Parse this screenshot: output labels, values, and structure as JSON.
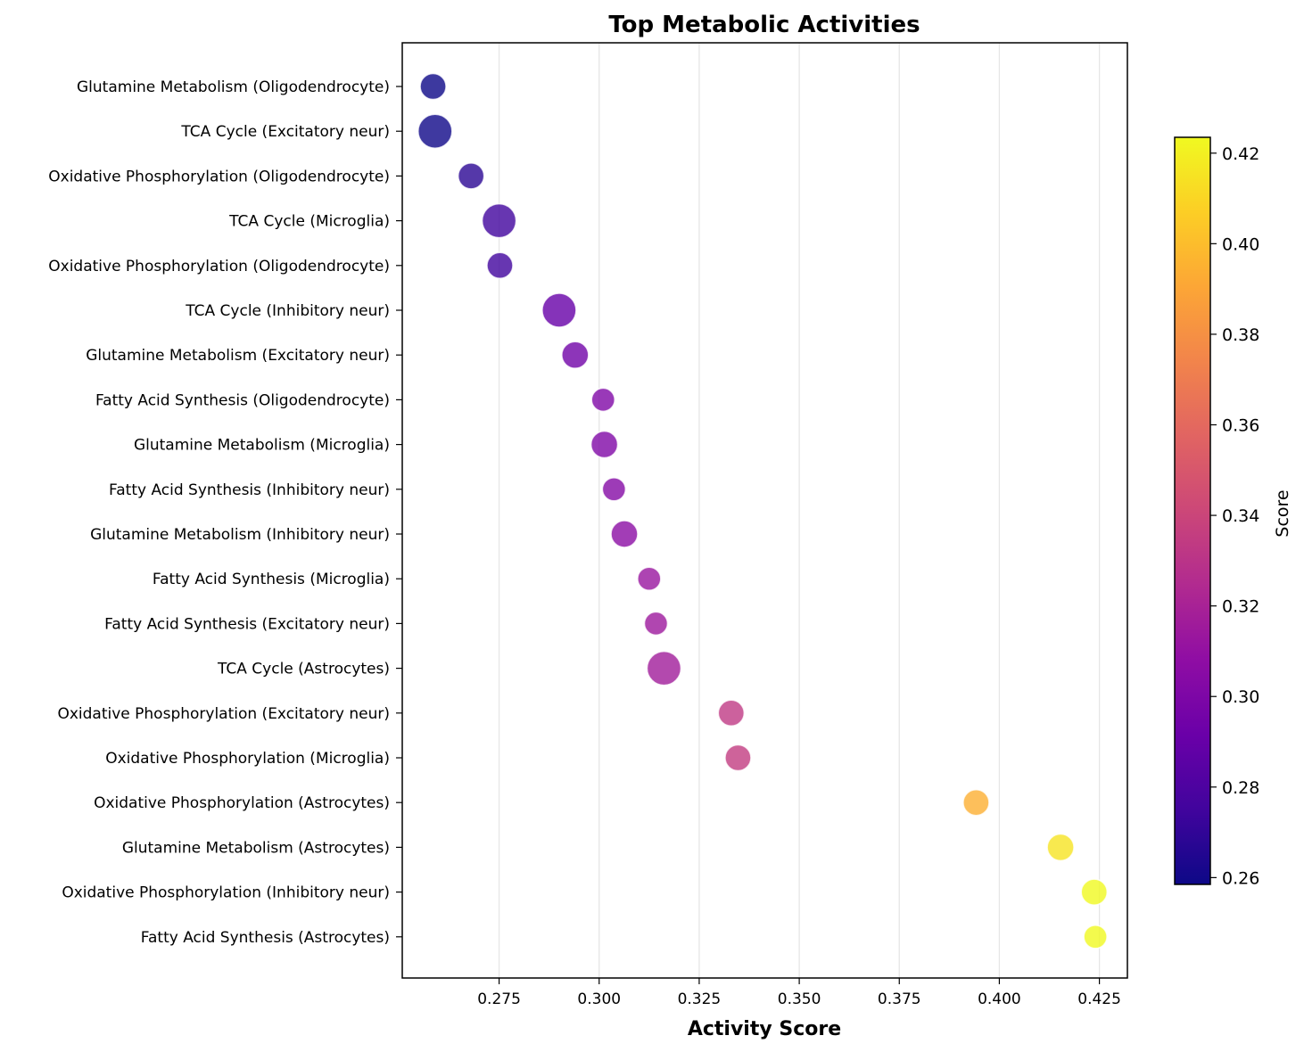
{
  "chart_data": {
    "type": "scatter",
    "title": "Top Metabolic Activities",
    "xlabel": "Activity Score",
    "xlim": [
      0.2508,
      0.432
    ],
    "xticks": [
      0.275,
      0.3,
      0.325,
      0.35,
      0.375,
      0.4,
      0.425
    ],
    "xtick_labels": [
      "0.275",
      "0.300",
      "0.325",
      "0.350",
      "0.375",
      "0.400",
      "0.425"
    ],
    "grid": "x",
    "colormap": "plasma",
    "colorbar": {
      "label": "Score",
      "range": [
        0.2585,
        0.4235
      ],
      "ticks": [
        0.26,
        0.28,
        0.3,
        0.32,
        0.34,
        0.36,
        0.38,
        0.4,
        0.42
      ],
      "tick_labels": [
        "0.26",
        "0.28",
        "0.30",
        "0.32",
        "0.34",
        "0.36",
        "0.38",
        "0.40",
        "0.42"
      ]
    },
    "points": [
      {
        "label": "Glutamine Metabolism (Oligodendrocyte)",
        "score": 0.2585,
        "size": 0.5
      },
      {
        "label": "TCA Cycle (Excitatory neur)",
        "score": 0.259,
        "size": 1.0
      },
      {
        "label": "Oxidative Phosphorylation (Oligodendrocyte)",
        "score": 0.268,
        "size": 0.5
      },
      {
        "label": "TCA Cycle (Microglia)",
        "score": 0.275,
        "size": 1.0
      },
      {
        "label": "Oxidative Phosphorylation (Oligodendrocyte)",
        "score": 0.2752,
        "size": 0.5
      },
      {
        "label": "TCA Cycle (Inhibitory neur)",
        "score": 0.29,
        "size": 1.0
      },
      {
        "label": "Glutamine Metabolism (Excitatory neur)",
        "score": 0.294,
        "size": 0.55
      },
      {
        "label": "Fatty Acid Synthesis (Oligodendrocyte)",
        "score": 0.301,
        "size": 0.33
      },
      {
        "label": "Glutamine Metabolism (Microglia)",
        "score": 0.3013,
        "size": 0.55
      },
      {
        "label": "Fatty Acid Synthesis (Inhibitory neur)",
        "score": 0.3037,
        "size": 0.33
      },
      {
        "label": "Glutamine Metabolism (Inhibitory neur)",
        "score": 0.3063,
        "size": 0.55
      },
      {
        "label": "Fatty Acid Synthesis (Microglia)",
        "score": 0.3125,
        "size": 0.33
      },
      {
        "label": "Fatty Acid Synthesis (Excitatory neur)",
        "score": 0.3142,
        "size": 0.33
      },
      {
        "label": "TCA Cycle (Astrocytes)",
        "score": 0.3162,
        "size": 1.0
      },
      {
        "label": "Oxidative Phosphorylation (Excitatory neur)",
        "score": 0.333,
        "size": 0.5
      },
      {
        "label": "Oxidative Phosphorylation (Microglia)",
        "score": 0.3347,
        "size": 0.5
      },
      {
        "label": "Oxidative Phosphorylation (Astrocytes)",
        "score": 0.3942,
        "size": 0.5
      },
      {
        "label": "Glutamine Metabolism (Astrocytes)",
        "score": 0.4153,
        "size": 0.55
      },
      {
        "label": "Oxidative Phosphorylation (Inhibitory neur)",
        "score": 0.4237,
        "size": 0.5
      },
      {
        "label": "Fatty Acid Synthesis (Astrocytes)",
        "score": 0.424,
        "size": 0.33
      }
    ]
  }
}
